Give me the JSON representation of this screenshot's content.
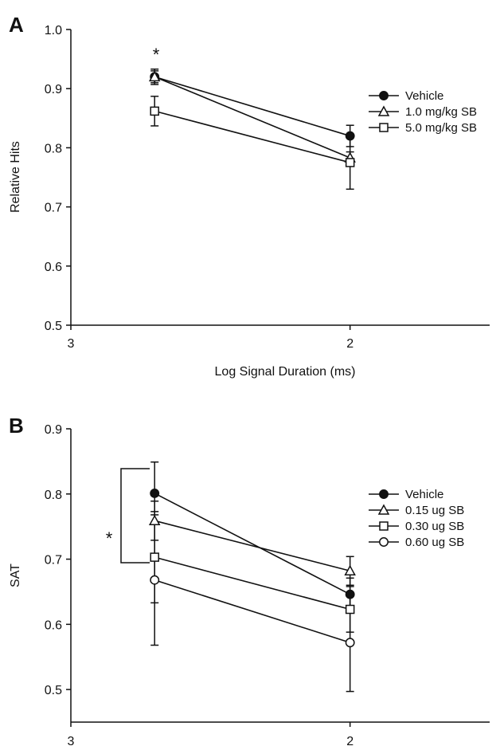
{
  "chart_data": [
    {
      "panel_label": "A",
      "type": "line",
      "xlabel": "Log Signal Duration (ms)",
      "ylabel": "Relative Hits",
      "x_tick_labels": [
        "3",
        "2"
      ],
      "x": [
        2.7,
        2.0
      ],
      "xlim": [
        3.0,
        1.5
      ],
      "ylim": [
        0.5,
        1.0
      ],
      "y_ticks": [
        "0.5",
        "0.6",
        "0.7",
        "0.8",
        "0.9",
        "1.0"
      ],
      "legend_position": "right",
      "annotations": [
        {
          "text": "*",
          "x": 2.7
        }
      ],
      "series": [
        {
          "name": "Vehicle",
          "marker": "filled-circle",
          "values": [
            0.92,
            0.82
          ],
          "err": [
            0.013,
            0.018
          ]
        },
        {
          "name": "1.0 mg/kg SB",
          "marker": "open-triangle",
          "values": [
            0.92,
            0.783
          ],
          "err": [
            0.01,
            0.01
          ]
        },
        {
          "name": "5.0 mg/kg SB",
          "marker": "open-square",
          "values": [
            0.862,
            0.775
          ],
          "err": [
            0.025,
            0.045
          ]
        }
      ]
    },
    {
      "panel_label": "B",
      "type": "line",
      "xlabel": "",
      "ylabel": "SAT",
      "x_tick_labels": [
        "3",
        "2"
      ],
      "x": [
        2.7,
        2.0
      ],
      "xlim": [
        3.0,
        1.5
      ],
      "ylim": [
        0.45,
        0.9
      ],
      "y_ticks": [
        "0.5",
        "0.6",
        "0.7",
        "0.8",
        "0.9"
      ],
      "legend_position": "right",
      "annotations": [
        {
          "text": "*",
          "x": 2.7
        }
      ],
      "series": [
        {
          "name": "Vehicle",
          "marker": "filled-circle",
          "values": [
            0.801,
            0.646
          ],
          "err": [
            0.048,
            0.025
          ]
        },
        {
          "name": "0.15 ug SB",
          "marker": "open-triangle",
          "values": [
            0.759,
            0.682
          ],
          "err": [
            0.03,
            0.022
          ]
        },
        {
          "name": "0.30 ug SB",
          "marker": "open-square",
          "values": [
            0.703,
            0.623
          ],
          "err": [
            0.07,
            0.035
          ]
        },
        {
          "name": "0.60 ug SB",
          "marker": "open-circle",
          "values": [
            0.668,
            0.572
          ],
          "err": [
            0.1,
            0.075
          ]
        }
      ]
    }
  ]
}
